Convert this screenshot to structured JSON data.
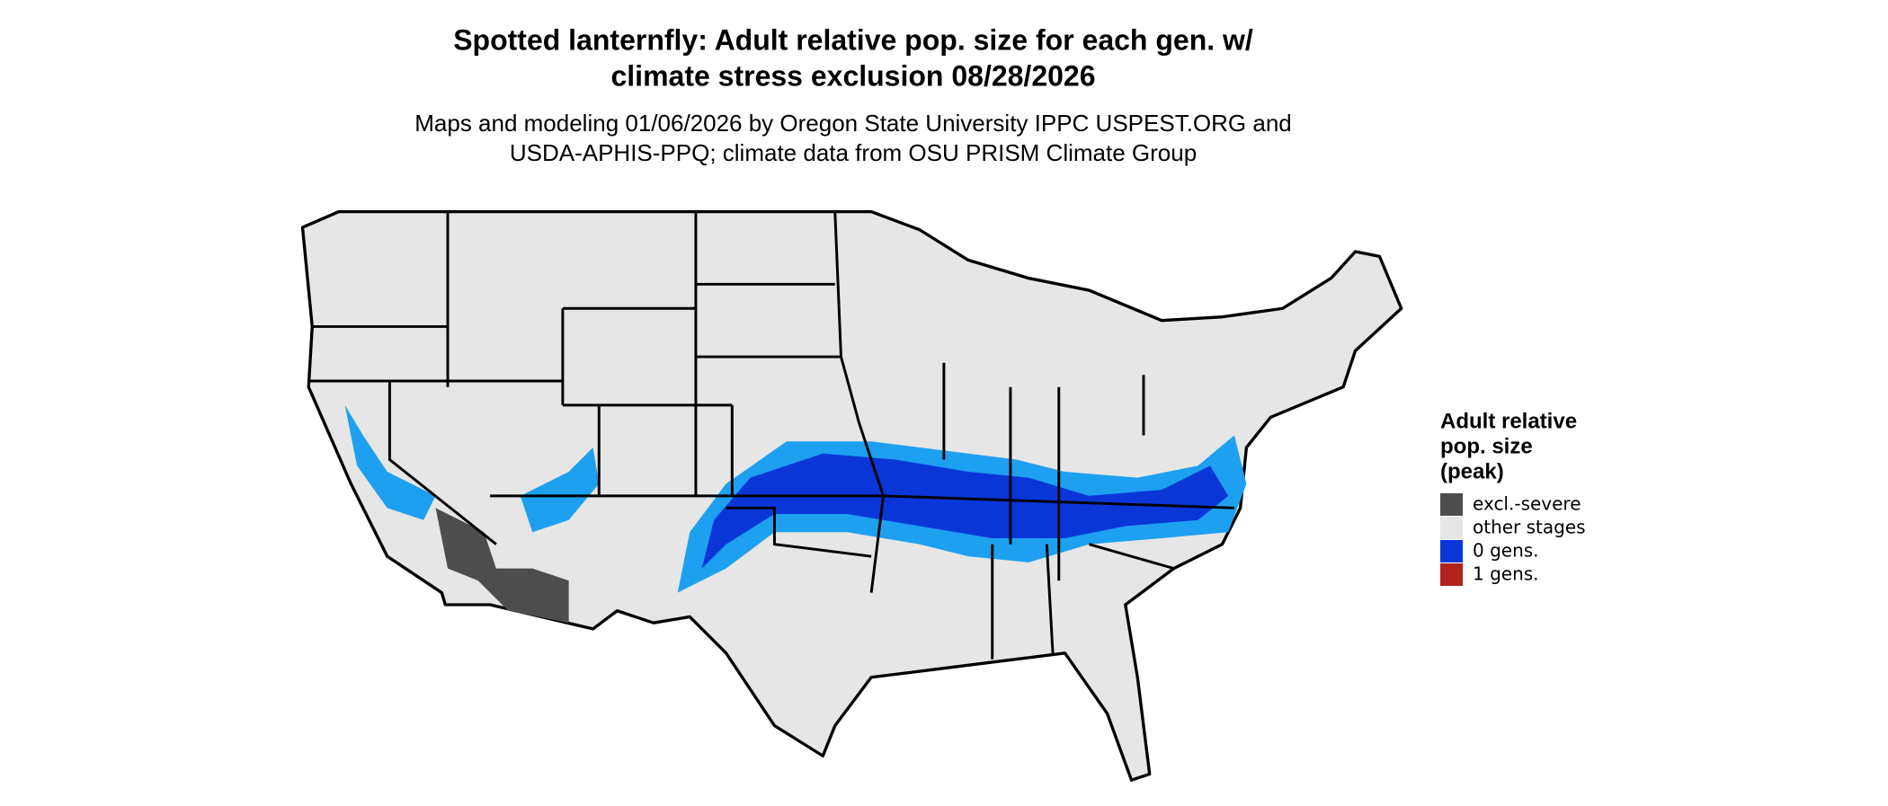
{
  "header": {
    "title": [
      "Spotted lanternfly: Adult relative pop. size for each gen. w/",
      "climate stress exclusion 08/28/2026"
    ],
    "subtitle": [
      "Maps and modeling 01/06/2026 by Oregon State University IPPC USPEST.ORG and",
      "USDA-APHIS-PPQ; climate data from OSU PRISM Climate Group"
    ]
  },
  "legend": {
    "title": [
      "Adult relative",
      "pop. size",
      "(peak)"
    ],
    "items": [
      {
        "label": "excl.-severe",
        "color": "#4d4d4d"
      },
      {
        "label": "other stages",
        "color": "#e6e6e6"
      },
      {
        "label": "0 gens.",
        "color": "#0a36d8"
      },
      {
        "label": "1 gens.",
        "color": "#b2221c"
      }
    ]
  }
}
